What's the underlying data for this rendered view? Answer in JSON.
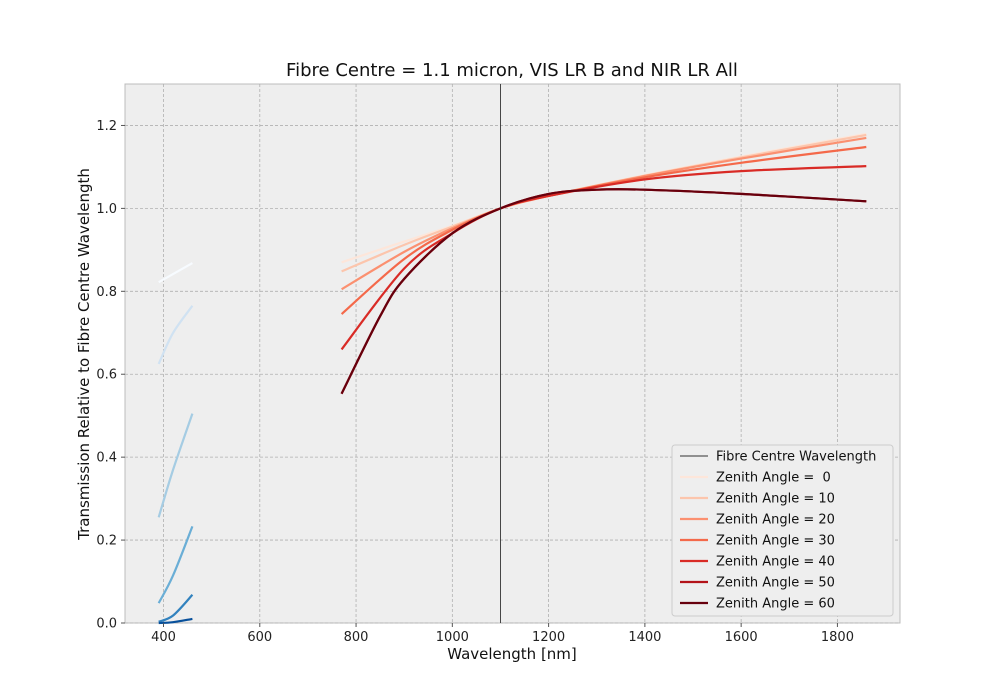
{
  "chart_data": {
    "type": "line",
    "title": "Fibre Centre = 1.1 micron, VIS LR B and NIR LR All",
    "xlabel": "Wavelength [nm]",
    "ylabel": "Transmission Relative to Fibre Centre Wavelength",
    "xlim": [
      320,
      1930
    ],
    "ylim": [
      0,
      1.3
    ],
    "xticks": [
      "400",
      "600",
      "800",
      "1000",
      "1200",
      "1400",
      "1600",
      "1800"
    ],
    "yticks": [
      "0.0",
      "0.2",
      "0.4",
      "0.6",
      "0.8",
      "1.0",
      "1.2"
    ],
    "grid": true,
    "legend_position": "lower-right",
    "vline": {
      "name": "Fibre Centre Wavelength",
      "x": 1100,
      "color": "#333333"
    },
    "nir_series": [
      {
        "name": "Zenith Angle =  0",
        "color": "#fde6da",
        "x": [
          770,
          900,
          1000,
          1100,
          1200,
          1400,
          1600,
          1860
        ],
        "y": [
          0.87,
          0.92,
          0.958,
          1.0,
          1.03,
          1.08,
          1.125,
          1.18
        ]
      },
      {
        "name": "Zenith Angle = 10",
        "color": "#fcc5ac",
        "x": [
          770,
          900,
          1000,
          1100,
          1200,
          1400,
          1600,
          1860
        ],
        "y": [
          0.848,
          0.912,
          0.956,
          1.0,
          1.03,
          1.079,
          1.123,
          1.177
        ]
      },
      {
        "name": "Zenith Angle = 20",
        "color": "#fb9070",
        "x": [
          770,
          900,
          1000,
          1100,
          1200,
          1400,
          1600,
          1860
        ],
        "y": [
          0.805,
          0.895,
          0.952,
          1.0,
          1.03,
          1.078,
          1.12,
          1.17
        ]
      },
      {
        "name": "Zenith Angle = 30",
        "color": "#f4694a",
        "x": [
          770,
          900,
          1000,
          1100,
          1200,
          1400,
          1600,
          1860
        ],
        "y": [
          0.745,
          0.878,
          0.948,
          1.0,
          1.03,
          1.075,
          1.11,
          1.148
        ]
      },
      {
        "name": "Zenith Angle = 40",
        "color": "#d92b26",
        "x": [
          770,
          900,
          1000,
          1100,
          1200,
          1400,
          1600,
          1860
        ],
        "y": [
          0.66,
          0.855,
          0.94,
          1.0,
          1.03,
          1.07,
          1.09,
          1.102
        ]
      },
      {
        "name": "Zenith Angle = 50",
        "color": "#b31319",
        "x": [
          770,
          850,
          900,
          1000,
          1100,
          1200,
          1300,
          1400,
          1600,
          1860
        ],
        "y": [
          0.553,
          0.74,
          0.83,
          0.94,
          1.0,
          1.035,
          1.045,
          1.045,
          1.035,
          1.017
        ]
      },
      {
        "name": "Zenith Angle = 60",
        "color": "#67000d",
        "x": [
          770,
          850,
          900,
          1000,
          1100,
          1200,
          1300,
          1400,
          1600,
          1860
        ],
        "y": [
          0.553,
          0.74,
          0.83,
          0.94,
          1.0,
          1.035,
          1.045,
          1.045,
          1.035,
          1.017
        ]
      }
    ],
    "vis_series": [
      {
        "color": "#f7fbff",
        "x": [
          390,
          460
        ],
        "y": [
          0.822,
          0.868
        ]
      },
      {
        "color": "#d0e2f2",
        "x": [
          390,
          420,
          460
        ],
        "y": [
          0.625,
          0.7,
          0.765
        ]
      },
      {
        "color": "#a5cce3",
        "x": [
          390,
          420,
          460
        ],
        "y": [
          0.255,
          0.37,
          0.505
        ]
      },
      {
        "color": "#6aaed6",
        "x": [
          390,
          420,
          460
        ],
        "y": [
          0.048,
          0.115,
          0.233
        ]
      },
      {
        "color": "#3282be",
        "x": [
          390,
          420,
          460
        ],
        "y": [
          0.003,
          0.018,
          0.068
        ]
      },
      {
        "color": "#08509b",
        "x": [
          390,
          420,
          460
        ],
        "y": [
          0.0,
          0.002,
          0.01
        ]
      }
    ]
  }
}
